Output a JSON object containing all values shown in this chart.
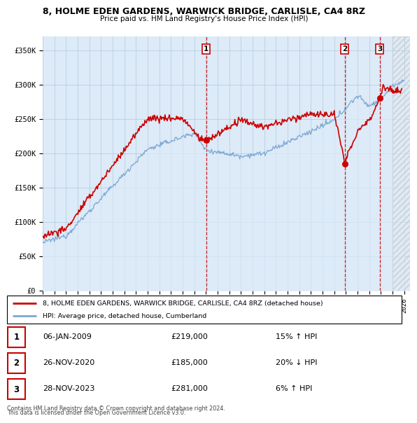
{
  "title": "8, HOLME EDEN GARDENS, WARWICK BRIDGE, CARLISLE, CA4 8RZ",
  "subtitle": "Price paid vs. HM Land Registry's House Price Index (HPI)",
  "ylabel_ticks": [
    "£0",
    "£50K",
    "£100K",
    "£150K",
    "£200K",
    "£250K",
    "£300K",
    "£350K"
  ],
  "ytick_values": [
    0,
    50000,
    100000,
    150000,
    200000,
    250000,
    300000,
    350000
  ],
  "ylim": [
    0,
    370000
  ],
  "xlim_start": 1995.0,
  "xlim_end": 2026.5,
  "hpi_color": "#7ba7d4",
  "price_color": "#cc0000",
  "bg_color": "#ddeaf7",
  "grid_color": "#b8cfe0",
  "sale_events": [
    {
      "num": 1,
      "date_x": 2009.02,
      "price": 219000
    },
    {
      "num": 2,
      "date_x": 2020.91,
      "price": 185000
    },
    {
      "num": 3,
      "date_x": 2023.91,
      "price": 281000
    }
  ],
  "legend_entries": [
    {
      "label": "8, HOLME EDEN GARDENS, WARWICK BRIDGE, CARLISLE, CA4 8RZ (detached house)",
      "color": "#cc0000"
    },
    {
      "label": "HPI: Average price, detached house, Cumberland",
      "color": "#7ba7d4"
    }
  ],
  "footer_lines": [
    "Contains HM Land Registry data © Crown copyright and database right 2024.",
    "This data is licensed under the Open Government Licence v3.0."
  ],
  "table_rows": [
    [
      "1",
      "06-JAN-2009",
      "£219,000",
      "15% ↑ HPI"
    ],
    [
      "2",
      "26-NOV-2020",
      "£185,000",
      "20% ↓ HPI"
    ],
    [
      "3",
      "28-NOV-2023",
      "£281,000",
      "6% ↑ HPI"
    ]
  ]
}
